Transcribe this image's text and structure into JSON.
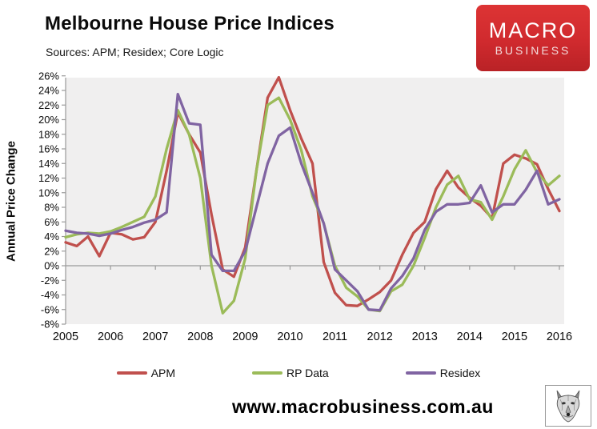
{
  "header": {
    "title": "Melbourne House Price Indices",
    "subtitle": "Sources: APM; Residex; Core Logic"
  },
  "logo": {
    "line1": "MACRO",
    "line2": "BUSINESS",
    "bg_color": "#d02a2e"
  },
  "chart_data": {
    "type": "line",
    "ylabel": "Annual Price Change",
    "xlabel": "",
    "ylim": [
      -8,
      26
    ],
    "ytick_step": 2,
    "ytick_suffix": "%",
    "x_tick_labels": [
      "2005",
      "2006",
      "2007",
      "2008",
      "2009",
      "2010",
      "2011",
      "2012",
      "2013",
      "2014",
      "2015",
      "2016"
    ],
    "grid": false,
    "plot_bg": "#f0efef",
    "axis_color": "#9a9a9a",
    "legend_position": "bottom",
    "x": [
      2005,
      2005.25,
      2005.5,
      2005.75,
      2006,
      2006.25,
      2006.5,
      2006.75,
      2007,
      2007.25,
      2007.5,
      2007.75,
      2008,
      2008.25,
      2008.5,
      2008.75,
      2009,
      2009.25,
      2009.5,
      2009.75,
      2010,
      2010.25,
      2010.5,
      2010.75,
      2011,
      2011.25,
      2011.5,
      2011.75,
      2012,
      2012.25,
      2012.5,
      2012.75,
      2013,
      2013.25,
      2013.5,
      2013.75,
      2014,
      2014.25,
      2014.5,
      2014.75,
      2015,
      2015.25,
      2015.5,
      2015.75,
      2016
    ],
    "series": [
      {
        "name": "APM",
        "color": "#c0504d",
        "values": [
          3.2,
          2.7,
          4.0,
          1.3,
          4.5,
          4.3,
          3.6,
          3.9,
          6.0,
          13.0,
          21.0,
          18.0,
          15.5,
          7.0,
          -0.5,
          -1.5,
          2.5,
          13.0,
          23.0,
          25.8,
          21.3,
          17.4,
          14.0,
          0.5,
          -3.7,
          -5.4,
          -5.5,
          -4.6,
          -3.6,
          -2.0,
          1.5,
          4.5,
          6.0,
          10.5,
          13.0,
          10.7,
          9.3,
          8.2,
          6.5,
          14.0,
          15.2,
          14.7,
          13.9,
          10.5,
          7.5
        ]
      },
      {
        "name": "RP Data",
        "color": "#9bbb59",
        "values": [
          3.9,
          4.3,
          4.5,
          4.4,
          4.7,
          5.3,
          6.0,
          6.7,
          9.5,
          16.0,
          21.3,
          18.0,
          12.0,
          0.0,
          -6.5,
          -4.8,
          1.0,
          13.0,
          22.0,
          23.0,
          20.0,
          15.8,
          9.5,
          5.8,
          0.0,
          -3.0,
          -4.2,
          -6.0,
          -6.2,
          -3.5,
          -2.6,
          0.0,
          3.8,
          8.0,
          11.1,
          12.3,
          9.1,
          8.7,
          6.3,
          9.5,
          13.2,
          15.8,
          12.8,
          11.0,
          12.3
        ]
      },
      {
        "name": "Residex",
        "color": "#8064a2",
        "values": [
          4.8,
          4.5,
          4.4,
          4.1,
          4.4,
          4.9,
          5.3,
          5.9,
          6.3,
          7.3,
          23.5,
          19.5,
          19.3,
          1.5,
          -0.7,
          -0.7,
          2.0,
          8.0,
          14.0,
          17.8,
          18.9,
          14.0,
          10.0,
          5.8,
          -0.5,
          -2.0,
          -3.5,
          -6.0,
          -6.1,
          -3.1,
          -1.4,
          1.0,
          4.9,
          7.4,
          8.4,
          8.4,
          8.6,
          11.0,
          7.3,
          8.4,
          8.4,
          10.4,
          13.0,
          8.4,
          9.1
        ]
      }
    ]
  },
  "footer": {
    "url": "www.macrobusiness.com.au"
  }
}
